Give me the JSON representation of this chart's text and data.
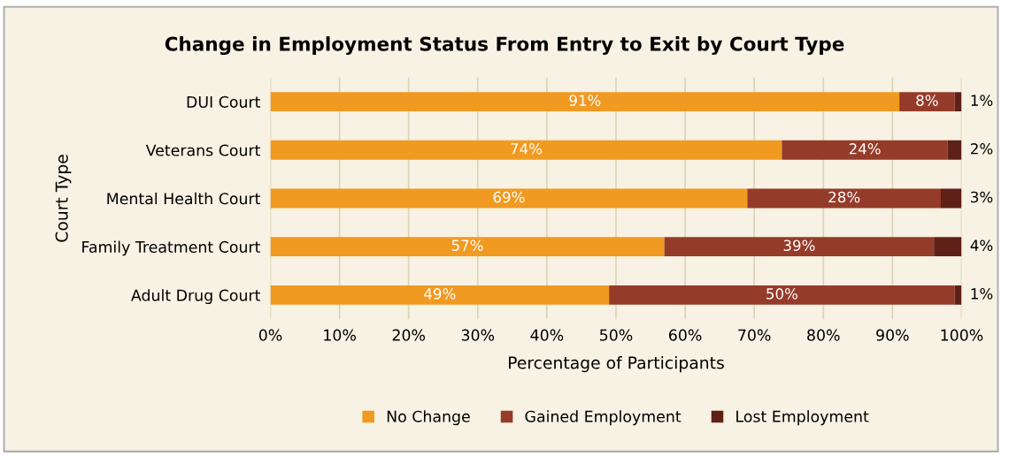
{
  "chart_data": {
    "type": "bar",
    "orientation": "horizontal",
    "stacked": true,
    "title": "Change in Employment Status From Entry to Exit by Court Type",
    "xlabel": "Percentage of Participants",
    "ylabel": "Court Type",
    "categories": [
      "DUI Court",
      "Veterans Court",
      "Mental Health Court",
      "Family Treatment Court",
      "Adult Drug Court"
    ],
    "series": [
      {
        "name": "No Change",
        "color": "#f09a22",
        "values": [
          91,
          74,
          69,
          57,
          49
        ],
        "value_labels": [
          "91%",
          "74%",
          "69%",
          "57%",
          "49%"
        ]
      },
      {
        "name": "Gained Employment",
        "color": "#953b29",
        "values": [
          8,
          24,
          28,
          39,
          50
        ],
        "value_labels": [
          "8%",
          "24%",
          "28%",
          "39%",
          "50%"
        ]
      },
      {
        "name": "Lost Employment",
        "color": "#5f2117",
        "values": [
          1,
          2,
          3,
          4,
          1
        ],
        "value_labels": [
          "1%",
          "2%",
          "3%",
          "4%",
          "1%"
        ]
      }
    ],
    "xlim": [
      0,
      100
    ],
    "xticks": [
      {
        "value": 0,
        "label": "0%"
      },
      {
        "value": 10,
        "label": "10%"
      },
      {
        "value": 20,
        "label": "20%"
      },
      {
        "value": 30,
        "label": "30%"
      },
      {
        "value": 40,
        "label": "40%"
      },
      {
        "value": 50,
        "label": "50%"
      },
      {
        "value": 60,
        "label": "60%"
      },
      {
        "value": 70,
        "label": "70%"
      },
      {
        "value": 80,
        "label": "80%"
      },
      {
        "value": 90,
        "label": "90%"
      },
      {
        "value": 100,
        "label": "100%"
      }
    ],
    "grid": "x",
    "legend": "bottom"
  }
}
